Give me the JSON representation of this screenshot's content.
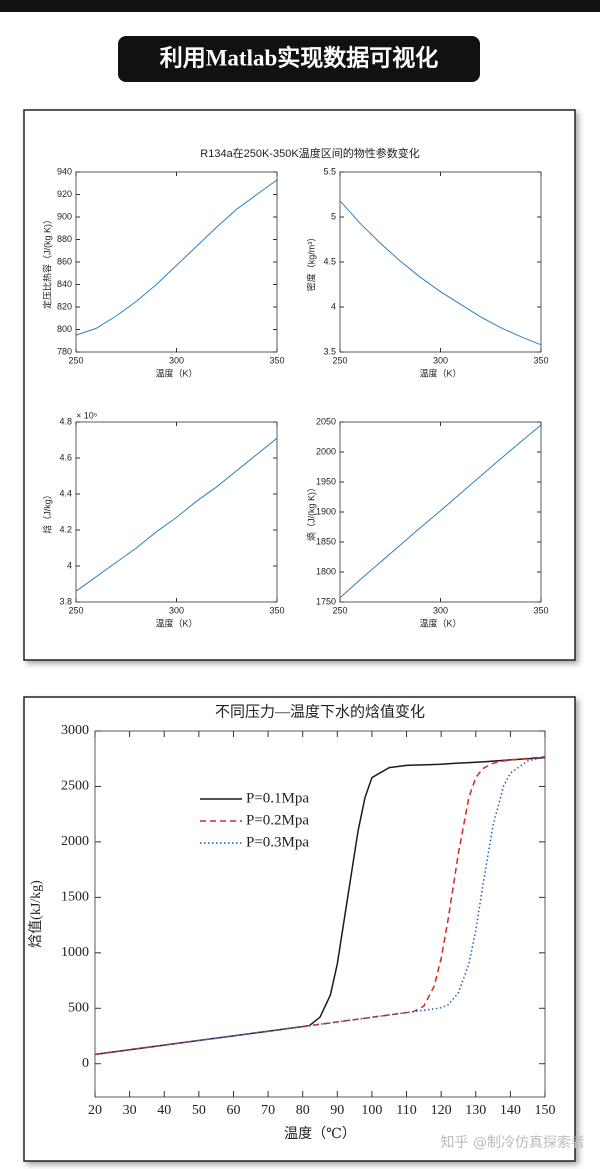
{
  "header": {
    "title": "利用Matlab实现数据可视化"
  },
  "figure": {
    "title": "R134a在250K-350K温度区间的物性参数变化"
  },
  "watermark": "知乎 @制冷仿真探索者",
  "chart_data": [
    {
      "type": "line",
      "x": [
        250,
        260,
        270,
        280,
        290,
        300,
        310,
        320,
        330,
        340,
        350
      ],
      "values": [
        795,
        801,
        812,
        825,
        840,
        857,
        874,
        891,
        907,
        920,
        933
      ],
      "color": "#2f7fc1",
      "xlim": [
        250,
        350
      ],
      "xticks": [
        250,
        300,
        350
      ],
      "ylim": [
        780,
        940
      ],
      "yticks": [
        780,
        800,
        820,
        840,
        860,
        880,
        900,
        920,
        940
      ],
      "x_label": "温度（K）",
      "y_label": "定压比热容（J/(kg K)）"
    },
    {
      "type": "line",
      "x": [
        250,
        260,
        270,
        280,
        290,
        300,
        310,
        320,
        330,
        340,
        350
      ],
      "values": [
        5.18,
        4.93,
        4.71,
        4.51,
        4.33,
        4.17,
        4.03,
        3.89,
        3.77,
        3.67,
        3.58
      ],
      "color": "#2f7fc1",
      "xlim": [
        250,
        350
      ],
      "xticks": [
        250,
        300,
        350
      ],
      "ylim": [
        3.5,
        5.5
      ],
      "yticks": [
        3.5,
        4,
        4.5,
        5,
        5.5
      ],
      "x_label": "温度（K）",
      "y_label": "密度（kg/m³）"
    },
    {
      "type": "line",
      "x": [
        250,
        260,
        270,
        280,
        290,
        300,
        310,
        320,
        330,
        340,
        350
      ],
      "values": [
        3.86,
        3.94,
        4.02,
        4.1,
        4.19,
        4.27,
        4.36,
        4.44,
        4.53,
        4.62,
        4.71
      ],
      "color": "#2f7fc1",
      "xlim": [
        250,
        350
      ],
      "xticks": [
        250,
        300,
        350
      ],
      "ylim": [
        3.8,
        4.8
      ],
      "yticks": [
        3.8,
        4,
        4.2,
        4.4,
        4.6,
        4.8
      ],
      "y_exponent": "× 10⁵",
      "x_label": "温度（K）",
      "y_label": "焓（J/kg）"
    },
    {
      "type": "line",
      "x": [
        250,
        260,
        270,
        280,
        290,
        300,
        310,
        320,
        330,
        340,
        350
      ],
      "values": [
        1757,
        1787,
        1816,
        1845,
        1874,
        1902,
        1931,
        1960,
        1989,
        2017,
        2045
      ],
      "color": "#2f7fc1",
      "xlim": [
        250,
        350
      ],
      "xticks": [
        250,
        300,
        350
      ],
      "ylim": [
        1750,
        2050
      ],
      "yticks": [
        1750,
        1800,
        1850,
        1900,
        1950,
        2000,
        2050
      ],
      "x_label": "温度（K）",
      "y_label": "熵（J/(kg K)）"
    },
    {
      "type": "line",
      "title": "不同压力—温度下水的焓值变化",
      "x": [
        20,
        30,
        40,
        50,
        60,
        70,
        80,
        82,
        85,
        88,
        90,
        92,
        94,
        96,
        98,
        100,
        105,
        110,
        112,
        115,
        118,
        120,
        122,
        125,
        128,
        130,
        132,
        135,
        138,
        140,
        145,
        150
      ],
      "series": [
        {
          "name": "P=0.1Mpa",
          "color": "#1a1a1a",
          "linestyle": "solid",
          "values": [
            84,
            126,
            168,
            210,
            251,
            293,
            335,
            345,
            420,
            620,
            900,
            1300,
            1700,
            2100,
            2400,
            2580,
            2670,
            2690,
            2692,
            2695,
            2698,
            2700,
            2705,
            2710,
            2715,
            2718,
            2722,
            2728,
            2735,
            2740,
            2750,
            2760
          ]
        },
        {
          "name": "P=0.2Mpa",
          "color": "#d62728",
          "linestyle": "dashed",
          "values": [
            84,
            126,
            168,
            210,
            251,
            293,
            335,
            343,
            356,
            368,
            377,
            385,
            394,
            402,
            410,
            419,
            440,
            461,
            470,
            520,
            700,
            950,
            1300,
            1900,
            2400,
            2580,
            2660,
            2710,
            2730,
            2740,
            2752,
            2768
          ]
        },
        {
          "name": "P=0.3Mpa",
          "color": "#1f5fbf",
          "linestyle": "dotted",
          "values": [
            84,
            126,
            168,
            210,
            251,
            293,
            335,
            343,
            356,
            368,
            377,
            385,
            394,
            402,
            410,
            419,
            440,
            461,
            470,
            482,
            495,
            505,
            530,
            640,
            900,
            1200,
            1600,
            2150,
            2500,
            2620,
            2730,
            2765
          ]
        }
      ],
      "xlim": [
        20,
        150
      ],
      "xticks": [
        20,
        30,
        40,
        50,
        60,
        70,
        80,
        90,
        100,
        110,
        120,
        130,
        140,
        150
      ],
      "ylim": [
        -300,
        3000
      ],
      "yticks": [
        0,
        500,
        1000,
        1500,
        2000,
        2500,
        3000
      ],
      "x_label": "温度（℃）",
      "y_label": "焓值(kJ/kg)",
      "legend": "upper left"
    }
  ]
}
